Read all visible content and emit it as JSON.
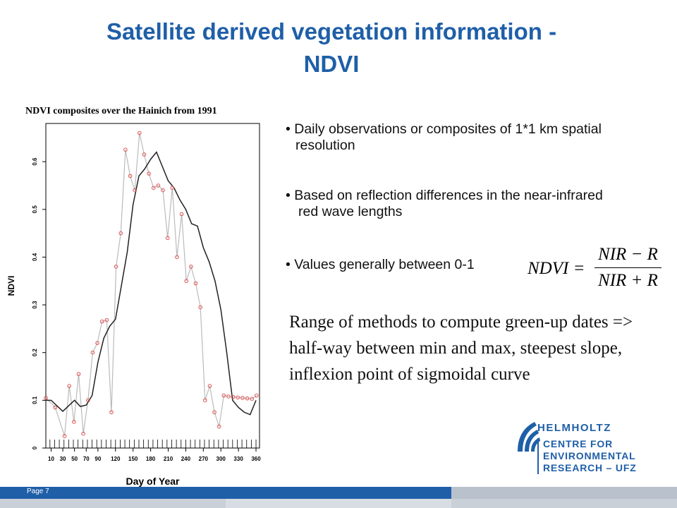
{
  "slide": {
    "title_line1": "Satellite derived vegetation information -",
    "title_line2": "NDVI",
    "page_label": "Page 7"
  },
  "chart_caption": "NDVI composites over the Hainich from 1991",
  "bullets": [
    {
      "line1": "Daily observations or composites of 1*1 km spatial",
      "line2": "resolution"
    },
    {
      "line1": "Based on reflection differences in the near-infrared",
      "line2": "red wave lengths"
    },
    {
      "line1": "Values generally between 0-1",
      "line2": ""
    }
  ],
  "formula": {
    "lhs": "NDVI =",
    "numerator": "NIR − R",
    "denominator": "NIR + R"
  },
  "methods_text": "Range of methods to compute green-up dates => half-way between min and max, steepest slope, inflexion point of sigmoidal curve",
  "logo": {
    "line1": "HELMHOLTZ",
    "line2": "CENTRE FOR",
    "line3": "ENVIRONMENTAL",
    "line4": "RESEARCH – UFZ"
  },
  "colors": {
    "title": "#1f5fa8",
    "points": "#e05050",
    "raw_line": "#bbbbbb",
    "smooth_line": "#222222"
  },
  "chart_data": {
    "type": "line",
    "xlabel": "Day of Year",
    "ylabel": "NDVI",
    "xlim": [
      1,
      366
    ],
    "ylim": [
      0,
      0.68
    ],
    "xticks": [
      10,
      30,
      50,
      70,
      90,
      120,
      150,
      180,
      210,
      240,
      270,
      300,
      330,
      360
    ],
    "yticks": [
      0,
      0.1,
      0.2,
      0.3,
      0.4,
      0.5,
      0.6
    ],
    "grid": false,
    "series": [
      {
        "kind": "observed",
        "x": [
          1,
          17,
          33,
          41,
          49,
          57,
          65,
          73,
          81,
          89,
          97,
          105,
          113,
          121,
          129,
          137,
          145,
          153,
          161,
          169,
          177,
          185,
          193,
          201,
          209,
          217,
          225,
          233,
          241,
          249,
          257,
          265,
          273,
          281,
          289,
          297,
          305,
          313,
          321,
          329,
          337,
          345,
          353,
          361
        ],
        "values": [
          0.105,
          0.085,
          0.025,
          0.13,
          0.055,
          0.155,
          0.03,
          0.1,
          0.2,
          0.22,
          0.265,
          0.268,
          0.075,
          0.38,
          0.45,
          0.625,
          0.57,
          0.54,
          0.66,
          0.615,
          0.575,
          0.545,
          0.55,
          0.54,
          0.44,
          0.545,
          0.4,
          0.49,
          0.35,
          0.38,
          0.345,
          0.295,
          0.1,
          0.13,
          0.075,
          0.045,
          0.11,
          0.108,
          0.107,
          0.106,
          0.105,
          0.104,
          0.103,
          0.11
        ]
      },
      {
        "kind": "smoothed",
        "x": [
          1,
          10,
          30,
          50,
          60,
          70,
          80,
          90,
          100,
          110,
          120,
          130,
          140,
          150,
          160,
          170,
          180,
          190,
          200,
          210,
          220,
          230,
          240,
          250,
          260,
          270,
          280,
          290,
          300,
          310,
          320,
          330,
          340,
          350,
          360
        ],
        "values": [
          0.1,
          0.1,
          0.077,
          0.1,
          0.087,
          0.09,
          0.11,
          0.18,
          0.23,
          0.255,
          0.27,
          0.34,
          0.41,
          0.51,
          0.57,
          0.585,
          0.605,
          0.62,
          0.59,
          0.56,
          0.545,
          0.52,
          0.5,
          0.47,
          0.465,
          0.42,
          0.39,
          0.35,
          0.29,
          0.2,
          0.1,
          0.085,
          0.075,
          0.07,
          0.1
        ]
      }
    ]
  }
}
